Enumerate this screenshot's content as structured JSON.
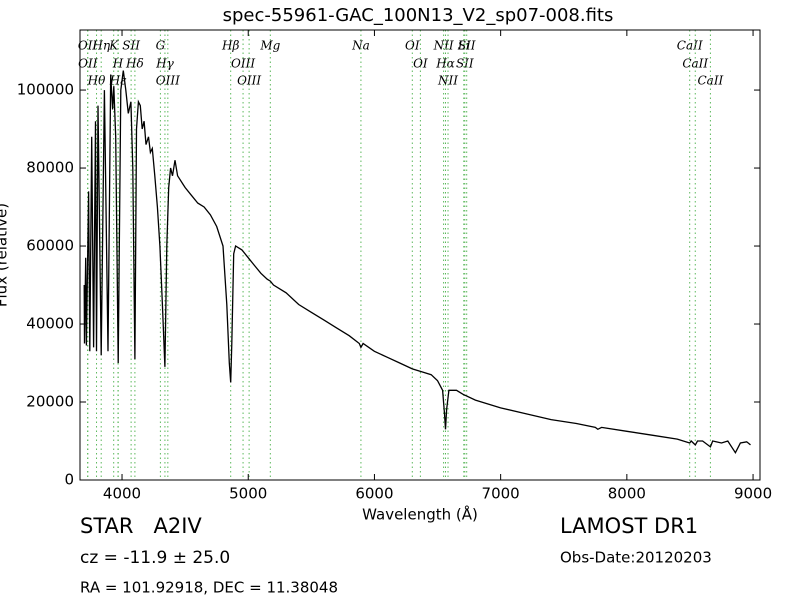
{
  "chart_data": {
    "type": "line",
    "title": "spec-55961-GAC_100N13_V2_sp07-008.fits",
    "x_label": "Wavelength (Å)",
    "y_label": "Flux (relative)",
    "color": "#000000",
    "xlim": [
      3667,
      9055
    ],
    "ylim": [
      0,
      115400
    ],
    "xticks": [
      4000,
      5000,
      6000,
      7000,
      8000,
      9000
    ],
    "yticks": [
      0,
      20000,
      40000,
      60000,
      80000,
      100000
    ],
    "x": [
      3700,
      3703,
      3712,
      3718,
      3735,
      3745,
      3760,
      3775,
      3790,
      3798,
      3810,
      3835,
      3860,
      3889,
      3910,
      3925,
      3935,
      3950,
      3970,
      3990,
      4010,
      4030,
      4050,
      4070,
      4085,
      4102,
      4115,
      4130,
      4145,
      4160,
      4175,
      4190,
      4210,
      4225,
      4240,
      4260,
      4280,
      4300,
      4320,
      4340,
      4355,
      4370,
      4385,
      4400,
      4420,
      4440,
      4460,
      4480,
      4500,
      4550,
      4600,
      4650,
      4700,
      4750,
      4800,
      4830,
      4850,
      4861,
      4870,
      4885,
      4900,
      4950,
      5000,
      5050,
      5100,
      5150,
      5175,
      5200,
      5300,
      5400,
      5500,
      5600,
      5700,
      5800,
      5880,
      5893,
      5910,
      6000,
      6100,
      6200,
      6300,
      6400,
      6450,
      6500,
      6540,
      6555,
      6563,
      6572,
      6590,
      6650,
      6700,
      6800,
      6900,
      7000,
      7200,
      7400,
      7600,
      7750,
      7770,
      7800,
      8000,
      8200,
      8400,
      8498,
      8510,
      8542,
      8560,
      8600,
      8662,
      8680,
      8750,
      8800,
      8860,
      8900,
      8950,
      8980
    ],
    "values": [
      50000,
      35000,
      57000,
      34500,
      74000,
      33000,
      88000,
      34000,
      92000,
      33000,
      96000,
      32000,
      100000,
      33000,
      104000,
      95000,
      101000,
      88000,
      30000,
      100000,
      105000,
      100000,
      94000,
      97000,
      80000,
      31000,
      90000,
      97000,
      96000,
      90000,
      92000,
      86000,
      88000,
      84000,
      85000,
      78000,
      70000,
      60000,
      45000,
      29000,
      60000,
      75000,
      80000,
      78000,
      82000,
      78000,
      77000,
      76000,
      75000,
      73000,
      71000,
      70000,
      68000,
      65000,
      60000,
      45000,
      30000,
      25000,
      35000,
      58000,
      60000,
      59000,
      57000,
      55000,
      53000,
      51500,
      51000,
      50000,
      48000,
      45000,
      43000,
      41000,
      39000,
      37000,
      35000,
      34000,
      35000,
      33000,
      31500,
      30000,
      28500,
      27500,
      27000,
      25500,
      23000,
      17000,
      13000,
      18000,
      23000,
      23000,
      22000,
      20500,
      19500,
      18500,
      17000,
      15500,
      14500,
      13500,
      13000,
      13500,
      12500,
      11500,
      10500,
      9500,
      10000,
      9000,
      10000,
      10000,
      8500,
      10000,
      9500,
      10000,
      7000,
      9500,
      9800,
      9000
    ],
    "line_color": "#5cb85c",
    "spectral_lines": [
      {
        "label": "OII",
        "wavelength": 3727
      },
      {
        "label": "OII",
        "wavelength": 3729
      },
      {
        "label": "Hθ",
        "wavelength": 3798
      },
      {
        "label": "Hη",
        "wavelength": 3835
      },
      {
        "label": "K",
        "wavelength": 3934
      },
      {
        "label": "H",
        "wavelength": 3968
      },
      {
        "label": "Hε",
        "wavelength": 3970
      },
      {
        "label": "SII",
        "wavelength": 4072
      },
      {
        "label": "Hδ",
        "wavelength": 4102
      },
      {
        "label": "G",
        "wavelength": 4304
      },
      {
        "label": "Hγ",
        "wavelength": 4340
      },
      {
        "label": "OIII",
        "wavelength": 4363
      },
      {
        "label": "Hβ",
        "wavelength": 4861
      },
      {
        "label": "OIII",
        "wavelength": 4959
      },
      {
        "label": "OIII",
        "wavelength": 5007
      },
      {
        "label": "Mg",
        "wavelength": 5175
      },
      {
        "label": "Na",
        "wavelength": 5893
      },
      {
        "label": "OI",
        "wavelength": 6300
      },
      {
        "label": "OI",
        "wavelength": 6364
      },
      {
        "label": "NII",
        "wavelength": 6548
      },
      {
        "label": "Hα",
        "wavelength": 6563
      },
      {
        "label": "NII",
        "wavelength": 6583
      },
      {
        "label": "Li",
        "wavelength": 6708
      },
      {
        "label": "SII",
        "wavelength": 6716
      },
      {
        "label": "SII",
        "wavelength": 6731
      },
      {
        "label": "CaII",
        "wavelength": 8498
      },
      {
        "label": "CaII",
        "wavelength": 8542
      },
      {
        "label": "CaII",
        "wavelength": 8662
      }
    ],
    "object_class": "STAR   A2IV",
    "redshift": "cz = -11.9 ± 25.0",
    "coordinates": "RA = 101.92918, DEC = 11.38048",
    "survey": "LAMOST DR1",
    "obs_date": "Obs-Date:20120203"
  }
}
